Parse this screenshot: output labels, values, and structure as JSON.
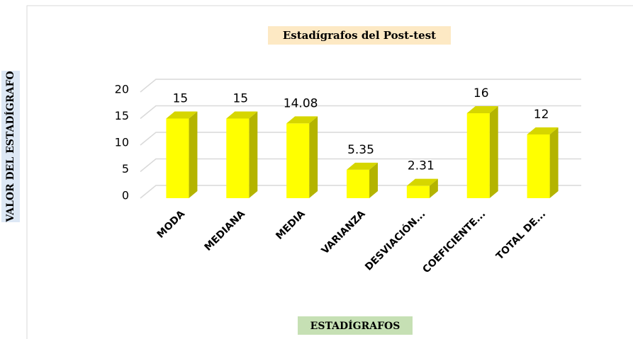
{
  "chart_data": {
    "type": "bar3d",
    "title": "Estadígrafos del Post-test",
    "x_label": "ESTADÍGRAFOS",
    "y_label": "VALOR DEL ESTADÍGRAFO",
    "categories": [
      "MODA",
      "MEDIANA",
      "MEDIA",
      "VARIANZA",
      "DESVIACIÓN...",
      "COEFICIENTE...",
      "TOTAL DE..."
    ],
    "values": [
      15,
      15,
      14.08,
      5.35,
      2.31,
      16,
      12
    ],
    "color": "#ffff00",
    "ylim": [
      0,
      20
    ],
    "yticks": [
      0,
      5,
      10,
      15,
      20
    ],
    "grid": true
  }
}
